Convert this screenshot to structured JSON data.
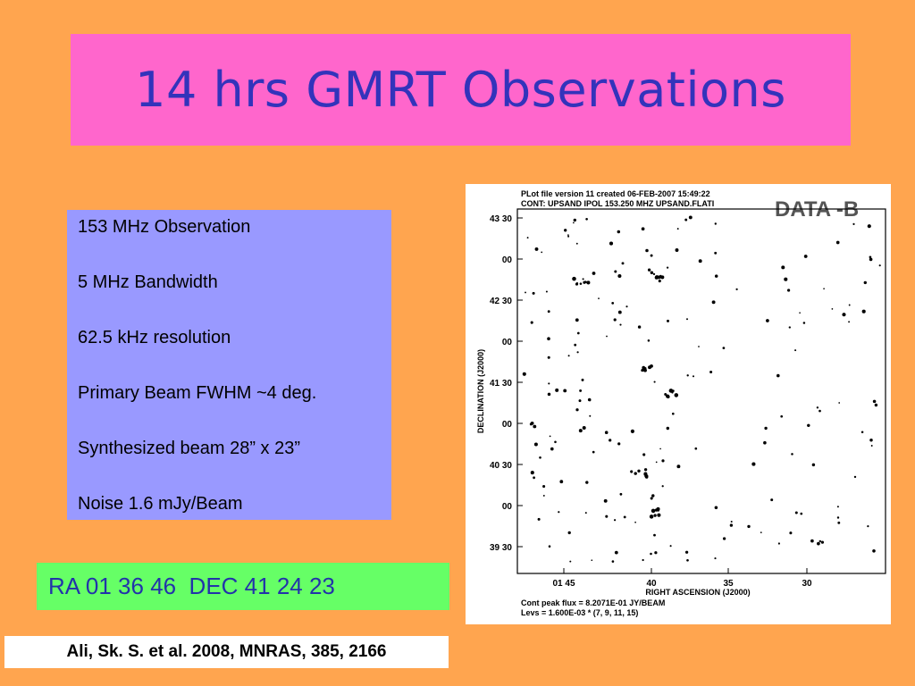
{
  "title": "14 hrs GMRT Observations",
  "specs": [
    "153 MHz Observation",
    "5 MHz Bandwidth",
    "62.5 kHz resolution",
    "Primary Beam FWHM ~4 deg.",
    "Synthesized beam 28” x 23”",
    "Noise 1.6 mJy/Beam"
  ],
  "coordinates": "RA 01 36 46  DEC 41 24 23",
  "citation": "Ali, Sk. S. et al. 2008, MNRAS, 385, 2166",
  "plot": {
    "header_line1": "PLot file version 11  created 06-FEB-2007 15:49:22",
    "header_line2": "CONT: UPSAND  IPOL  153.250 MHZ  UPSAND.FLATI",
    "stamp": "DATA -B",
    "y_axis_label": "DECLINATION (J2000)",
    "x_axis_label": "RIGHT ASCENSION (J2000)",
    "footer_line1": "Cont peak flux =  8.2071E-01 JY/BEAM",
    "footer_line2": "Levs = 1.600E-03 * (7, 9, 11, 15)",
    "y_ticks": [
      "43 30",
      "00",
      "42 30",
      "00",
      "41 30",
      "00",
      "40 30",
      "00",
      "39 30"
    ],
    "x_ticks": [
      "01 45",
      "40",
      "35",
      "30"
    ]
  },
  "colors": {
    "background": "#ffa54f",
    "title_box": "#ff66cc",
    "title_text": "#3333bb",
    "specs_box": "#9999ff",
    "coord_box": "#66ff66",
    "coord_text": "#2233aa"
  }
}
